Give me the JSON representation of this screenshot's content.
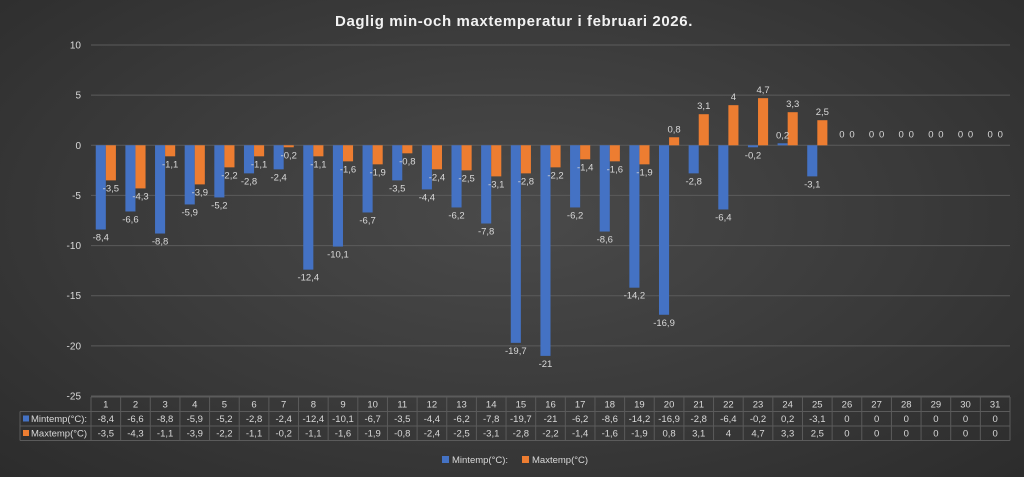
{
  "chart_data": {
    "type": "bar",
    "title": "Daglig min-och maxtemperatur i februari 2026.",
    "categories": [
      "1",
      "2",
      "3",
      "4",
      "5",
      "6",
      "7",
      "8",
      "9",
      "10",
      "11",
      "12",
      "13",
      "14",
      "15",
      "16",
      "17",
      "18",
      "19",
      "20",
      "21",
      "22",
      "23",
      "24",
      "25",
      "26",
      "27",
      "28",
      "29",
      "30",
      "31"
    ],
    "series": [
      {
        "name": "Mintemp(°C):",
        "color": "#4472c4",
        "values": [
          -8.4,
          -6.6,
          -8.8,
          -5.9,
          -5.2,
          -2.8,
          -2.4,
          -12.4,
          -10.1,
          -6.7,
          -3.5,
          -4.4,
          -6.2,
          -7.8,
          -19.7,
          -21,
          -6.2,
          -8.6,
          -14.2,
          -16.9,
          -2.8,
          -6.4,
          -0.2,
          0.2,
          -3.1,
          0,
          0,
          0,
          0,
          0,
          0
        ],
        "labels": [
          "-8,4",
          "-6,6",
          "-8,8",
          "-5,9",
          "-5,2",
          "-2,8",
          "-2,4",
          "-12,4",
          "-10,1",
          "-6,7",
          "-3,5",
          "-4,4",
          "-6,2",
          "-7,8",
          "-19,7",
          "-21",
          "-6,2",
          "-8,6",
          "-14,2",
          "-16,9",
          "-2,8",
          "-6,4",
          "-0,2",
          "0,2",
          "-3,1",
          "0",
          "0",
          "0",
          "0",
          "0",
          "0"
        ]
      },
      {
        "name": "Maxtemp(°C)",
        "color": "#ed7d31",
        "values": [
          -3.5,
          -4.3,
          -1.1,
          -3.9,
          -2.2,
          -1.1,
          -0.2,
          -1.1,
          -1.6,
          -1.9,
          -0.8,
          -2.4,
          -2.5,
          -3.1,
          -2.8,
          -2.2,
          -1.4,
          -1.6,
          -1.9,
          0.8,
          3.1,
          4,
          4.7,
          3.3,
          2.5,
          0,
          0,
          0,
          0,
          0,
          0
        ],
        "labels": [
          "-3,5",
          "-4,3",
          "-1,1",
          "-3,9",
          "-2,2",
          "-1,1",
          "-0,2",
          "-1,1",
          "-1,6",
          "-1,9",
          "-0,8",
          "-2,4",
          "-2,5",
          "-3,1",
          "-2,8",
          "-2,2",
          "-1,4",
          "-1,6",
          "-1,9",
          "0,8",
          "3,1",
          "4",
          "4,7",
          "3,3",
          "2,5",
          "0",
          "0",
          "0",
          "0",
          "0",
          "0"
        ]
      }
    ],
    "yticks": [
      "10",
      "5",
      "0",
      "-5",
      "-10",
      "-15",
      "-20",
      "-25"
    ],
    "ylim": [
      -25,
      10
    ],
    "grid": true,
    "legend": "bottom",
    "data_table": true
  }
}
